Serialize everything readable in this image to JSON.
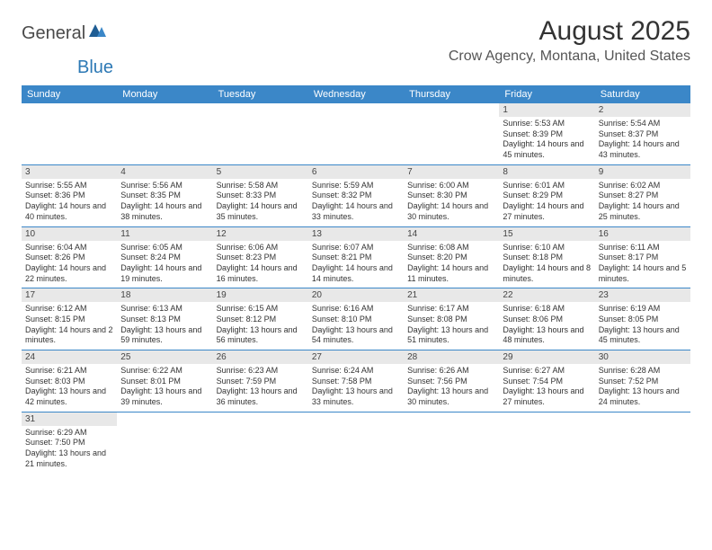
{
  "logo": {
    "general": "General",
    "blue": "Blue"
  },
  "title": "August 2025",
  "location": "Crow Agency, Montana, United States",
  "colors": {
    "headerBg": "#3b87c8",
    "dayNumBg": "#e8e8e8",
    "rowBorder": "#3b87c8",
    "pageBg": "#ffffff",
    "titleColor": "#333333",
    "locationColor": "#555555"
  },
  "dayNames": [
    "Sunday",
    "Monday",
    "Tuesday",
    "Wednesday",
    "Thursday",
    "Friday",
    "Saturday"
  ],
  "weeks": [
    [
      null,
      null,
      null,
      null,
      null,
      {
        "n": "1",
        "sr": "Sunrise: 5:53 AM",
        "ss": "Sunset: 8:39 PM",
        "dl": "Daylight: 14 hours and 45 minutes."
      },
      {
        "n": "2",
        "sr": "Sunrise: 5:54 AM",
        "ss": "Sunset: 8:37 PM",
        "dl": "Daylight: 14 hours and 43 minutes."
      }
    ],
    [
      {
        "n": "3",
        "sr": "Sunrise: 5:55 AM",
        "ss": "Sunset: 8:36 PM",
        "dl": "Daylight: 14 hours and 40 minutes."
      },
      {
        "n": "4",
        "sr": "Sunrise: 5:56 AM",
        "ss": "Sunset: 8:35 PM",
        "dl": "Daylight: 14 hours and 38 minutes."
      },
      {
        "n": "5",
        "sr": "Sunrise: 5:58 AM",
        "ss": "Sunset: 8:33 PM",
        "dl": "Daylight: 14 hours and 35 minutes."
      },
      {
        "n": "6",
        "sr": "Sunrise: 5:59 AM",
        "ss": "Sunset: 8:32 PM",
        "dl": "Daylight: 14 hours and 33 minutes."
      },
      {
        "n": "7",
        "sr": "Sunrise: 6:00 AM",
        "ss": "Sunset: 8:30 PM",
        "dl": "Daylight: 14 hours and 30 minutes."
      },
      {
        "n": "8",
        "sr": "Sunrise: 6:01 AM",
        "ss": "Sunset: 8:29 PM",
        "dl": "Daylight: 14 hours and 27 minutes."
      },
      {
        "n": "9",
        "sr": "Sunrise: 6:02 AM",
        "ss": "Sunset: 8:27 PM",
        "dl": "Daylight: 14 hours and 25 minutes."
      }
    ],
    [
      {
        "n": "10",
        "sr": "Sunrise: 6:04 AM",
        "ss": "Sunset: 8:26 PM",
        "dl": "Daylight: 14 hours and 22 minutes."
      },
      {
        "n": "11",
        "sr": "Sunrise: 6:05 AM",
        "ss": "Sunset: 8:24 PM",
        "dl": "Daylight: 14 hours and 19 minutes."
      },
      {
        "n": "12",
        "sr": "Sunrise: 6:06 AM",
        "ss": "Sunset: 8:23 PM",
        "dl": "Daylight: 14 hours and 16 minutes."
      },
      {
        "n": "13",
        "sr": "Sunrise: 6:07 AM",
        "ss": "Sunset: 8:21 PM",
        "dl": "Daylight: 14 hours and 14 minutes."
      },
      {
        "n": "14",
        "sr": "Sunrise: 6:08 AM",
        "ss": "Sunset: 8:20 PM",
        "dl": "Daylight: 14 hours and 11 minutes."
      },
      {
        "n": "15",
        "sr": "Sunrise: 6:10 AM",
        "ss": "Sunset: 8:18 PM",
        "dl": "Daylight: 14 hours and 8 minutes."
      },
      {
        "n": "16",
        "sr": "Sunrise: 6:11 AM",
        "ss": "Sunset: 8:17 PM",
        "dl": "Daylight: 14 hours and 5 minutes."
      }
    ],
    [
      {
        "n": "17",
        "sr": "Sunrise: 6:12 AM",
        "ss": "Sunset: 8:15 PM",
        "dl": "Daylight: 14 hours and 2 minutes."
      },
      {
        "n": "18",
        "sr": "Sunrise: 6:13 AM",
        "ss": "Sunset: 8:13 PM",
        "dl": "Daylight: 13 hours and 59 minutes."
      },
      {
        "n": "19",
        "sr": "Sunrise: 6:15 AM",
        "ss": "Sunset: 8:12 PM",
        "dl": "Daylight: 13 hours and 56 minutes."
      },
      {
        "n": "20",
        "sr": "Sunrise: 6:16 AM",
        "ss": "Sunset: 8:10 PM",
        "dl": "Daylight: 13 hours and 54 minutes."
      },
      {
        "n": "21",
        "sr": "Sunrise: 6:17 AM",
        "ss": "Sunset: 8:08 PM",
        "dl": "Daylight: 13 hours and 51 minutes."
      },
      {
        "n": "22",
        "sr": "Sunrise: 6:18 AM",
        "ss": "Sunset: 8:06 PM",
        "dl": "Daylight: 13 hours and 48 minutes."
      },
      {
        "n": "23",
        "sr": "Sunrise: 6:19 AM",
        "ss": "Sunset: 8:05 PM",
        "dl": "Daylight: 13 hours and 45 minutes."
      }
    ],
    [
      {
        "n": "24",
        "sr": "Sunrise: 6:21 AM",
        "ss": "Sunset: 8:03 PM",
        "dl": "Daylight: 13 hours and 42 minutes."
      },
      {
        "n": "25",
        "sr": "Sunrise: 6:22 AM",
        "ss": "Sunset: 8:01 PM",
        "dl": "Daylight: 13 hours and 39 minutes."
      },
      {
        "n": "26",
        "sr": "Sunrise: 6:23 AM",
        "ss": "Sunset: 7:59 PM",
        "dl": "Daylight: 13 hours and 36 minutes."
      },
      {
        "n": "27",
        "sr": "Sunrise: 6:24 AM",
        "ss": "Sunset: 7:58 PM",
        "dl": "Daylight: 13 hours and 33 minutes."
      },
      {
        "n": "28",
        "sr": "Sunrise: 6:26 AM",
        "ss": "Sunset: 7:56 PM",
        "dl": "Daylight: 13 hours and 30 minutes."
      },
      {
        "n": "29",
        "sr": "Sunrise: 6:27 AM",
        "ss": "Sunset: 7:54 PM",
        "dl": "Daylight: 13 hours and 27 minutes."
      },
      {
        "n": "30",
        "sr": "Sunrise: 6:28 AM",
        "ss": "Sunset: 7:52 PM",
        "dl": "Daylight: 13 hours and 24 minutes."
      }
    ],
    [
      {
        "n": "31",
        "sr": "Sunrise: 6:29 AM",
        "ss": "Sunset: 7:50 PM",
        "dl": "Daylight: 13 hours and 21 minutes."
      },
      null,
      null,
      null,
      null,
      null,
      null
    ]
  ]
}
